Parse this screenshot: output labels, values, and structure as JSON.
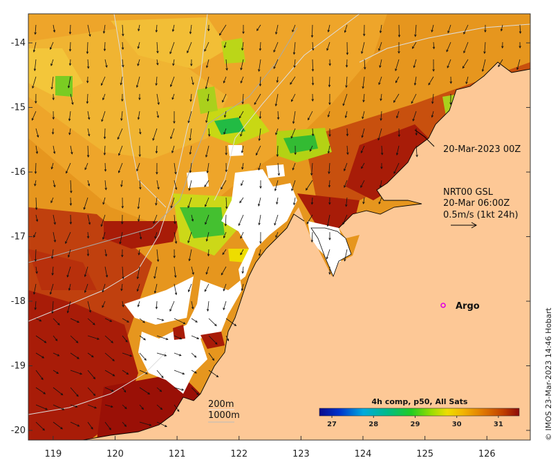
{
  "map": {
    "lon_ticks": [
      "119",
      "120",
      "121",
      "122",
      "123",
      "124",
      "125",
      "126"
    ],
    "lat_ticks": [
      "-14",
      "-15",
      "-16",
      "-17",
      "-18",
      "-19",
      "-20"
    ],
    "lon_range": [
      118.6,
      126.7
    ],
    "lat_range": [
      -20.15,
      -13.55
    ]
  },
  "annotations": {
    "date_label": "20-Mar-2023 00Z",
    "current_source": "NRT00 GSL",
    "current_time": "20-Mar 06:00Z",
    "current_scale": "0.5m/s (1kt 24h)",
    "argo_label": "Argo",
    "isobath_200": "200m",
    "isobath_1000": "1000m"
  },
  "colorbar": {
    "title": "4h comp, p50, All Sats",
    "ticks": [
      "27",
      "28",
      "29",
      "30",
      "31"
    ],
    "range": [
      26.7,
      31.5
    ]
  },
  "credit": "© IMOS 23-Mar-2023 14:46 Hobart",
  "colors": {
    "land": "#fdc896",
    "no_data": "#ffffff",
    "argo_marker": "#e000e0",
    "isobath": "#dddddd"
  }
}
